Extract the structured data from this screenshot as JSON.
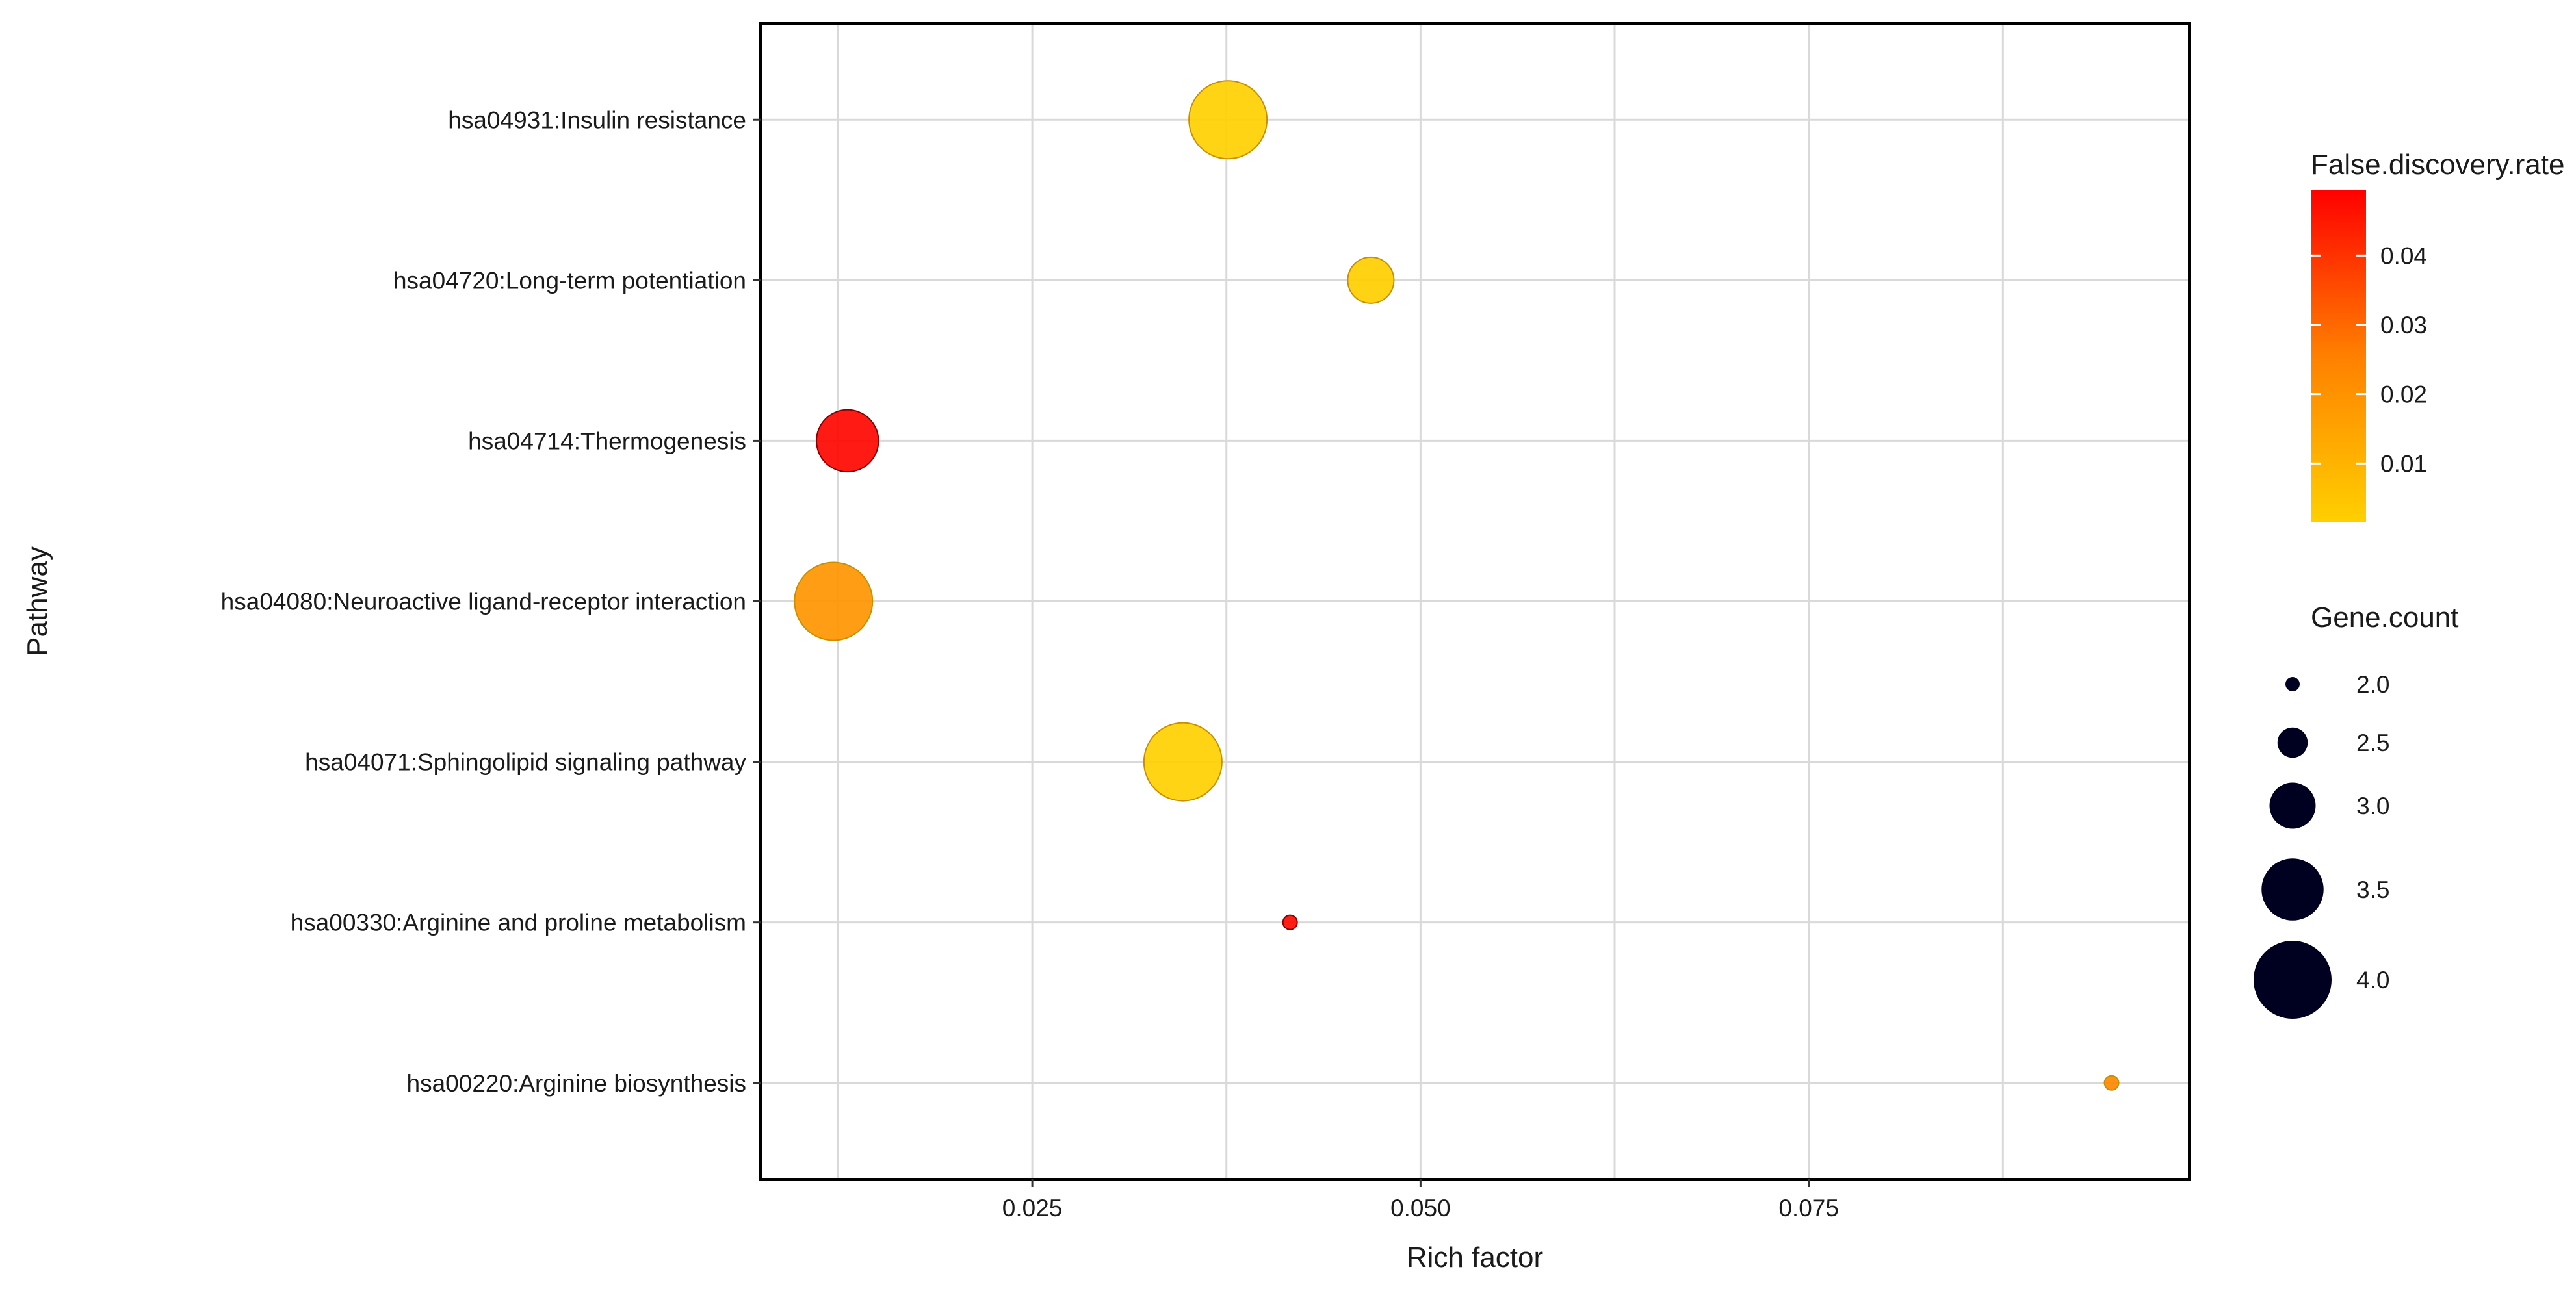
{
  "chart_data": {
    "type": "scatter",
    "xlabel": "Rich factor",
    "ylabel": "Pathway",
    "xlim": [
      0.0075,
      0.0995
    ],
    "x_ticks": [
      0.025,
      0.05,
      0.075
    ],
    "x_tick_labels": [
      "0.025",
      "0.050",
      "0.075"
    ],
    "grid": true,
    "categories": [
      "hsa04931:Insulin resistance",
      "hsa04720:Long-term potentiation",
      "hsa04714:Thermogenesis",
      "hsa04080:Neuroactive ligand-receptor interaction",
      "hsa04071:Sphingolipid signaling pathway",
      "hsa00330:Arginine and proline metabolism",
      "hsa00220:Arginine biosynthesis"
    ],
    "points": [
      {
        "pathway": "hsa04931:Insulin resistance",
        "rich_factor": 0.0376,
        "gene_count": 4,
        "fdr": 0.0015
      },
      {
        "pathway": "hsa04720:Long-term potentiation",
        "rich_factor": 0.0468,
        "gene_count": 3,
        "fdr": 0.002
      },
      {
        "pathway": "hsa04714:Thermogenesis",
        "rich_factor": 0.0131,
        "gene_count": 3.5,
        "fdr": 0.048
      },
      {
        "pathway": "hsa04080:Neuroactive ligand-receptor interaction",
        "rich_factor": 0.0122,
        "gene_count": 4,
        "fdr": 0.015
      },
      {
        "pathway": "hsa04071:Sphingolipid signaling pathway",
        "rich_factor": 0.0347,
        "gene_count": 4,
        "fdr": 0.0015
      },
      {
        "pathway": "hsa00330:Arginine and proline metabolism",
        "rich_factor": 0.0416,
        "gene_count": 2,
        "fdr": 0.047
      },
      {
        "pathway": "hsa00220:Arginine biosynthesis",
        "rich_factor": 0.0945,
        "gene_count": 2,
        "fdr": 0.018
      }
    ],
    "color_legend": {
      "title": "False.discovery.rate",
      "ticks": [
        0.01,
        0.02,
        0.03,
        0.04
      ],
      "tick_labels": [
        "0.01",
        "0.02",
        "0.03",
        "0.04"
      ],
      "range": [
        0.0015,
        0.0495
      ],
      "low_color": "#FFD000",
      "high_color": "#FF0000"
    },
    "size_legend": {
      "title": "Gene.count",
      "values": [
        2,
        2.5,
        3,
        3.5,
        4
      ],
      "labels": [
        "2.0",
        "2.5",
        "3.0",
        "3.5",
        "4.0"
      ],
      "color": "#000020"
    },
    "legend_position": "right"
  }
}
